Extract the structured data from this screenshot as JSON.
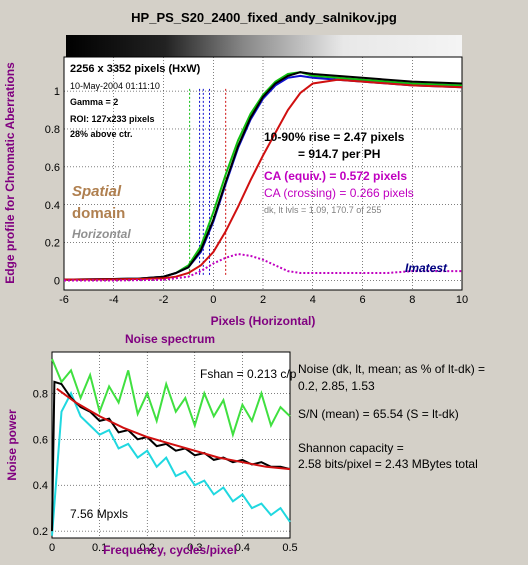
{
  "title": "HP_PS_S20_2400_fixed_andy_salnikov.jpg",
  "colors": {
    "background": "#d4d0c8",
    "red": "#d01010",
    "green": "#10c010",
    "blue": "#1010d0",
    "black": "#000000",
    "magenta": "#c000c0",
    "cyan": "#20d8e0",
    "light_green": "#40e040",
    "title": "#800080",
    "spatial": "#b08050",
    "dark_blue": "#000080"
  },
  "edge_panel": {
    "info": {
      "size": "2256 x 3352 pixels (HxW)",
      "date": "10-May-2004 01:11:10",
      "gamma": "Gamma = 2",
      "roi": "ROI: 127x233 pixels",
      "above_ctr": "28% above ctr."
    },
    "rise": "10-90% rise = 2.47 pixels",
    "per_ph": "= 914.7 per PH",
    "ca_equiv": "CA (equiv.) = 0.572 pixels",
    "ca_crossing": "CA (crossing) = 0.266 pixels",
    "dk_lt": "dk, lt lvls = 1.09, 170.7 of 255",
    "spatial": "Spatial",
    "domain": "domain",
    "horizontal": "Horizontal",
    "brand": "Imatest"
  },
  "noise_panel": {
    "title": "Noise spectrum",
    "fshan": "Fshan = 0.213 c/p",
    "mpxls": "7.56 Mpxls",
    "noise_line1": "Noise (dk, lt, mean; as % of lt-dk) =",
    "noise_line2": "0.2,  2.85,  1.53",
    "sn": "S/N (mean) = 65.54  (S = lt-dk)",
    "shannon1": "Shannon capacity =",
    "shannon2": "2.58 bits/pixel = 2.43 MBytes total"
  },
  "chart_data": [
    {
      "type": "line",
      "title": "",
      "xlabel": "Pixels (Horizontal)",
      "ylabel": "Edge profile for Chromatic Aberrations",
      "xlim": [
        -6,
        10
      ],
      "ylim": [
        -0.05,
        1.18
      ],
      "xticks": [
        -6,
        -4,
        -2,
        0,
        2,
        4,
        6,
        8,
        10
      ],
      "yticks": [
        0,
        0.2,
        0.4,
        0.6,
        0.8,
        1
      ],
      "xtick_labels": [
        "-6",
        "-4",
        "-2",
        "0",
        "2",
        "4",
        "6",
        "8",
        "10"
      ],
      "ytick_labels": [
        "0",
        "0.2",
        "0.4",
        "0.6",
        "0.8",
        "1"
      ],
      "grid": true,
      "series": [
        {
          "color": "#10c010",
          "x": [
            -6,
            -4,
            -3,
            -2,
            -1.5,
            -1,
            -0.5,
            0,
            0.5,
            1,
            1.5,
            2,
            2.5,
            3,
            3.5,
            4,
            5,
            6,
            8,
            10
          ],
          "y": [
            0.005,
            0.008,
            0.01,
            0.02,
            0.04,
            0.08,
            0.18,
            0.36,
            0.56,
            0.74,
            0.88,
            0.98,
            1.05,
            1.09,
            1.1,
            1.08,
            1.07,
            1.06,
            1.04,
            1.03
          ]
        },
        {
          "color": "#1010d0",
          "x": [
            -6,
            -4,
            -3,
            -2,
            -1.5,
            -1,
            -0.5,
            0,
            0.5,
            1,
            1.5,
            2,
            2.5,
            3,
            3.5,
            4,
            5,
            6,
            8,
            10
          ],
          "y": [
            0.005,
            0.008,
            0.01,
            0.02,
            0.04,
            0.07,
            0.15,
            0.31,
            0.51,
            0.7,
            0.85,
            0.96,
            1.03,
            1.07,
            1.08,
            1.07,
            1.06,
            1.05,
            1.03,
            1.02
          ]
        },
        {
          "color": "#000000",
          "x": [
            -6,
            -4,
            -3,
            -2,
            -1.5,
            -1,
            -0.5,
            0,
            0.5,
            1,
            1.5,
            2,
            2.5,
            3,
            3.5,
            4,
            5,
            6,
            8,
            10
          ],
          "y": [
            0.005,
            0.008,
            0.01,
            0.02,
            0.04,
            0.07,
            0.16,
            0.32,
            0.52,
            0.71,
            0.86,
            0.97,
            1.04,
            1.08,
            1.1,
            1.09,
            1.08,
            1.07,
            1.05,
            1.04
          ]
        },
        {
          "color": "#d01010",
          "x": [
            -6,
            -4,
            -3,
            -2,
            -1.5,
            -1,
            -0.5,
            0,
            0.5,
            1,
            1.5,
            2,
            2.5,
            3,
            3.5,
            4,
            5,
            6,
            8,
            10
          ],
          "y": [
            0.005,
            0.006,
            0.008,
            0.012,
            0.02,
            0.04,
            0.08,
            0.15,
            0.26,
            0.39,
            0.53,
            0.66,
            0.78,
            0.9,
            0.99,
            1.04,
            1.06,
            1.05,
            1.03,
            1.02
          ]
        },
        {
          "color": "#c000c0",
          "dashed": true,
          "x": [
            -6,
            -4,
            -2,
            -1,
            -0.5,
            0,
            0.5,
            1,
            1.5,
            2,
            2.5,
            3,
            3.5,
            4,
            5,
            6,
            7,
            8,
            9,
            10
          ],
          "y": [
            0.0,
            0.0,
            0.004,
            0.02,
            0.05,
            0.09,
            0.12,
            0.14,
            0.13,
            0.11,
            0.08,
            0.05,
            0.04,
            0.04,
            0.04,
            0.04,
            0.04,
            0.05,
            0.05,
            0.05
          ]
        }
      ],
      "vlines": [
        {
          "x": -0.95,
          "color": "#10c010"
        },
        {
          "x": -0.55,
          "color": "#1010d0"
        },
        {
          "x": -0.4,
          "color": "#1010d0"
        },
        {
          "x": -0.15,
          "color": "#1010d0"
        },
        {
          "x": 0.5,
          "color": "#d01010"
        }
      ]
    },
    {
      "type": "line",
      "title": "Noise spectrum",
      "xlabel": "Frequency, cycles/pixel",
      "ylabel": "Noise power",
      "xlim": [
        0,
        0.5
      ],
      "ylim": [
        0.17,
        0.98
      ],
      "xticks": [
        0,
        0.1,
        0.2,
        0.3,
        0.4,
        0.5
      ],
      "yticks": [
        0.2,
        0.4,
        0.6,
        0.8
      ],
      "xtick_labels": [
        "0",
        "0.1",
        "0.2",
        "0.3",
        "0.4",
        "0.5"
      ],
      "ytick_labels": [
        "0.2",
        "0.4",
        "0.6",
        "0.8"
      ],
      "grid": true,
      "series": [
        {
          "color": "#40e040",
          "x": [
            0,
            0.02,
            0.04,
            0.06,
            0.08,
            0.1,
            0.12,
            0.14,
            0.16,
            0.18,
            0.2,
            0.22,
            0.24,
            0.26,
            0.28,
            0.3,
            0.32,
            0.34,
            0.36,
            0.38,
            0.4,
            0.42,
            0.44,
            0.46,
            0.48,
            0.5
          ],
          "y": [
            0.95,
            0.85,
            0.9,
            0.78,
            0.88,
            0.72,
            0.83,
            0.76,
            0.9,
            0.71,
            0.8,
            0.68,
            0.84,
            0.72,
            0.78,
            0.66,
            0.8,
            0.7,
            0.77,
            0.62,
            0.75,
            0.68,
            0.8,
            0.66,
            0.74,
            0.7
          ]
        },
        {
          "color": "#20d8e0",
          "x": [
            0,
            0.02,
            0.04,
            0.06,
            0.08,
            0.1,
            0.12,
            0.14,
            0.16,
            0.18,
            0.2,
            0.22,
            0.24,
            0.26,
            0.28,
            0.3,
            0.32,
            0.34,
            0.36,
            0.38,
            0.4,
            0.42,
            0.44,
            0.46,
            0.48,
            0.5
          ],
          "y": [
            0.18,
            0.72,
            0.8,
            0.7,
            0.66,
            0.62,
            0.64,
            0.56,
            0.58,
            0.52,
            0.55,
            0.48,
            0.52,
            0.44,
            0.46,
            0.4,
            0.42,
            0.36,
            0.39,
            0.33,
            0.36,
            0.3,
            0.32,
            0.27,
            0.3,
            0.24
          ]
        },
        {
          "color": "#000000",
          "x": [
            0,
            0.005,
            0.02,
            0.04,
            0.06,
            0.08,
            0.1,
            0.12,
            0.14,
            0.16,
            0.18,
            0.2,
            0.22,
            0.24,
            0.26,
            0.28,
            0.3,
            0.32,
            0.34,
            0.36,
            0.38,
            0.4,
            0.42,
            0.44,
            0.46,
            0.48,
            0.5
          ],
          "y": [
            0.2,
            0.85,
            0.84,
            0.78,
            0.74,
            0.72,
            0.68,
            0.69,
            0.63,
            0.64,
            0.6,
            0.61,
            0.57,
            0.58,
            0.55,
            0.56,
            0.53,
            0.54,
            0.51,
            0.52,
            0.5,
            0.51,
            0.49,
            0.5,
            0.48,
            0.48,
            0.47
          ]
        },
        {
          "color": "#d01010",
          "x": [
            0.01,
            0.05,
            0.1,
            0.15,
            0.2,
            0.25,
            0.3,
            0.35,
            0.4,
            0.45,
            0.5
          ],
          "y": [
            0.82,
            0.76,
            0.7,
            0.65,
            0.61,
            0.58,
            0.55,
            0.52,
            0.5,
            0.48,
            0.47
          ]
        }
      ]
    }
  ]
}
